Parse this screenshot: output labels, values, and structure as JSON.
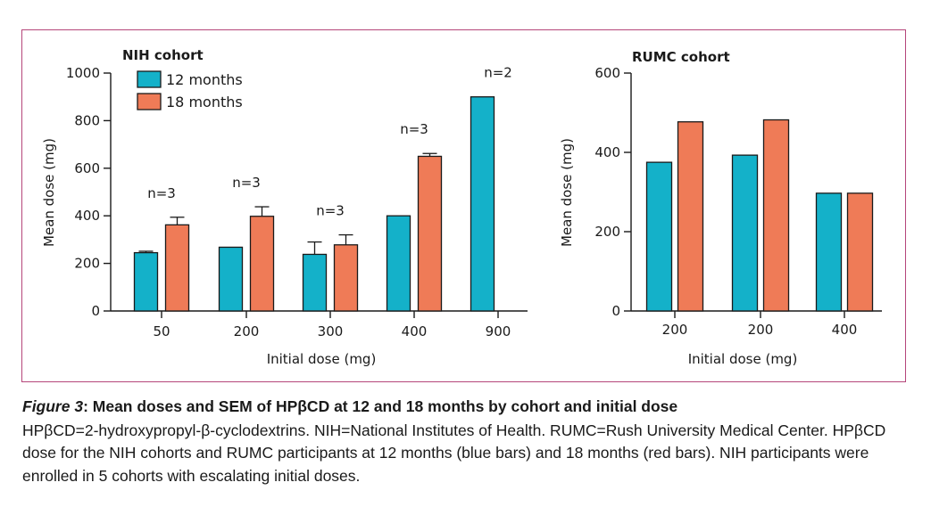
{
  "chart_data": [
    {
      "type": "bar",
      "title": "NIH cohort",
      "xlabel": "Initial dose (mg)",
      "ylabel": "Mean dose (mg)",
      "ylim": [
        0,
        1000
      ],
      "yticks": [
        0,
        200,
        400,
        600,
        800,
        1000
      ],
      "categories": [
        "50",
        "200",
        "300",
        "400",
        "900"
      ],
      "series": [
        {
          "name": "12 months",
          "color": "#14b1c9",
          "values": [
            245,
            268,
            238,
            400,
            900
          ],
          "sem": [
            6,
            0,
            52,
            0,
            0
          ]
        },
        {
          "name": "18 months",
          "color": "#ef7b57",
          "values": [
            362,
            398,
            278,
            650,
            null
          ],
          "sem": [
            32,
            40,
            42,
            12,
            null
          ]
        }
      ],
      "annotations": [
        {
          "category": "50",
          "text": "n=3"
        },
        {
          "category": "200",
          "text": "n=3"
        },
        {
          "category": "300",
          "text": "n=3"
        },
        {
          "category": "400",
          "text": "n=3"
        },
        {
          "category": "900",
          "text": "n=2"
        }
      ],
      "legend": "top-left"
    },
    {
      "type": "bar",
      "title": "RUMC cohort",
      "xlabel": "Initial dose (mg)",
      "ylabel": "Mean dose (mg)",
      "ylim": [
        0,
        600
      ],
      "yticks": [
        0,
        200,
        400,
        600
      ],
      "categories": [
        "200",
        "200",
        "400"
      ],
      "series": [
        {
          "name": "12 months",
          "color": "#14b1c9",
          "values": [
            375,
            393,
            297
          ]
        },
        {
          "name": "18 months",
          "color": "#ef7b57",
          "values": [
            477,
            482,
            297
          ]
        }
      ]
    }
  ],
  "caption": {
    "figure_label": "Figure 3",
    "title": ": Mean doses  and SEM of HPβCD at 12 and 18 months by cohort and initial dose",
    "body": "HPβCD=2-hydroxypropyl-β-cyclodextrins. NIH=National Institutes of Health. RUMC=Rush University Medical Center. HPβCD dose for the NIH cohorts and RUMC participants at 12 months (blue bars) and 18 months (red bars). NIH participants were enrolled in 5 cohorts with escalating initial doses."
  }
}
